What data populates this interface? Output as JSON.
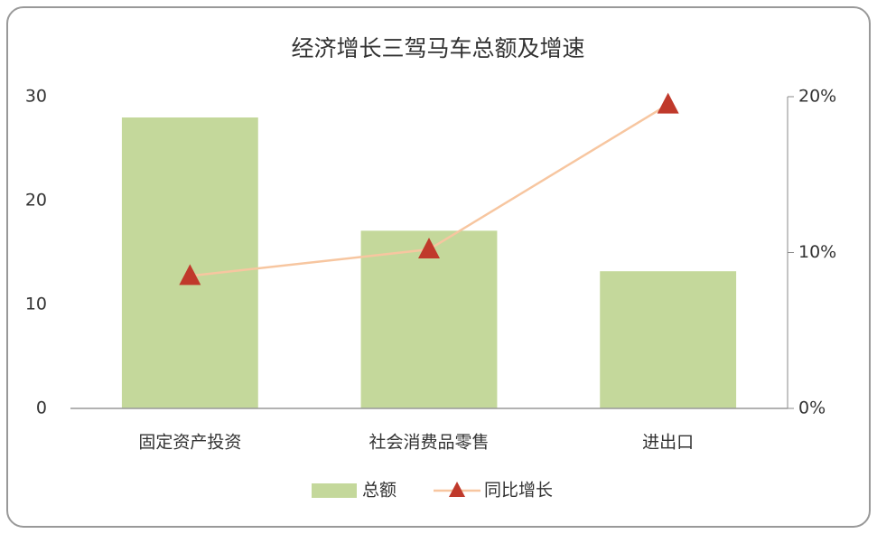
{
  "chart_data": {
    "type": "bar",
    "title": "经济增长三驾马车总额及增速",
    "categories": [
      "固定资产投资",
      "社会消费品零售",
      "进出口"
    ],
    "series": [
      {
        "name": "总额",
        "type": "bar",
        "color": "#c4d89b",
        "values": [
          28,
          17.1,
          13.2
        ]
      },
      {
        "name": "同比增长",
        "type": "line",
        "color": "#f7c6a0",
        "marker_color": "#c0392b",
        "axis": "y2",
        "values": [
          8.5,
          10.2,
          19.5
        ]
      }
    ],
    "ylim": [
      0,
      30
    ],
    "yticks": [
      0,
      10,
      20,
      30
    ],
    "y2lim": [
      0,
      20
    ],
    "y2ticks": [
      {
        "value": 0,
        "label": "0%"
      },
      {
        "value": 10,
        "label": "10%"
      },
      {
        "value": 20,
        "label": "20%"
      }
    ],
    "legend": "bottom"
  }
}
